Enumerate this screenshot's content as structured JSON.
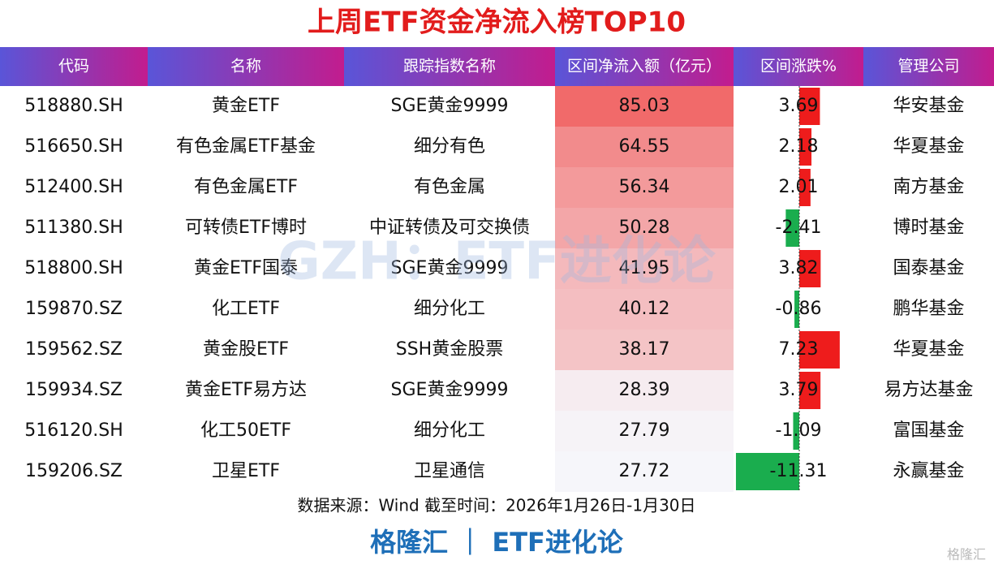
{
  "title": "上周ETF资金净流入榜TOP10",
  "table": {
    "headers": [
      "代码",
      "名称",
      "跟踪指数名称",
      "区间净流入额（亿元）",
      "区间涨跌%",
      "管理公司"
    ],
    "rows": [
      [
        "518880.SH",
        "黄金ETF",
        "SGE黄金9999",
        85.03,
        3.69,
        "华安基金"
      ],
      [
        "516650.SH",
        "有色金属ETF基金",
        "细分有色",
        64.55,
        2.18,
        "华夏基金"
      ],
      [
        "512400.SH",
        "有色金属ETF",
        "有色金属",
        56.34,
        2.01,
        "南方基金"
      ],
      [
        "511380.SH",
        "可转债ETF博时",
        "中证转债及可交换债",
        50.28,
        -2.41,
        "博时基金"
      ],
      [
        "518800.SH",
        "黄金ETF国泰",
        "SGE黄金9999",
        41.95,
        3.82,
        "国泰基金"
      ],
      [
        "159870.SZ",
        "化工ETF",
        "细分化工",
        40.12,
        -0.86,
        "鹏华基金"
      ],
      [
        "159562.SZ",
        "黄金股ETF",
        "SSH黄金股票",
        38.17,
        7.23,
        "华夏基金"
      ],
      [
        "159934.SZ",
        "黄金ETF易方达",
        "SGE黄金9999",
        28.39,
        3.79,
        "易方达基金"
      ],
      [
        "516120.SH",
        "化工50ETF",
        "细分化工",
        27.79,
        -1.09,
        "富国基金"
      ],
      [
        "159206.SZ",
        "卫星ETF",
        "卫星通信",
        27.72,
        -11.31,
        "永赢基金"
      ]
    ]
  },
  "watermark": "GZH：ETF进化论",
  "source": "数据来源：Wind 截至时间：2026年1月26日-1月30日",
  "brand": "格隆汇 ｜ ETF进化论",
  "logo": "格隆汇"
}
